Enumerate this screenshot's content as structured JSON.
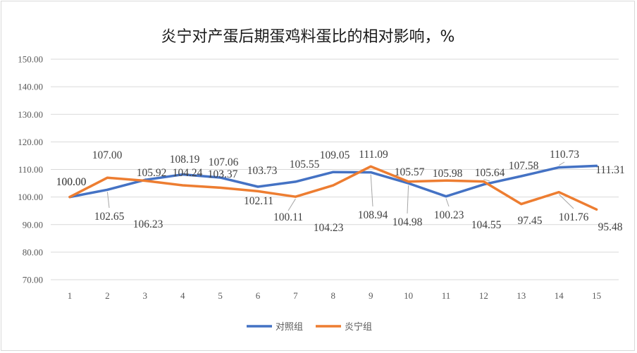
{
  "chart_data": {
    "type": "line",
    "title": "炎宁对产蛋后期蛋鸡料蛋比的相对影响，%",
    "xlabel": "",
    "ylabel": "",
    "categories": [
      "1",
      "2",
      "3",
      "4",
      "5",
      "6",
      "7",
      "8",
      "9",
      "10",
      "11",
      "12",
      "13",
      "14",
      "15"
    ],
    "ylim": [
      70,
      150
    ],
    "yticks": [
      "70.00",
      "80.00",
      "90.00",
      "100.00",
      "110.00",
      "120.00",
      "130.00",
      "140.00",
      "150.00"
    ],
    "grid": true,
    "legend_position": "bottom",
    "series": [
      {
        "name": "对照组",
        "color": "#4472c4",
        "values": [
          100.0,
          102.65,
          106.23,
          108.19,
          107.06,
          103.73,
          105.55,
          109.05,
          108.94,
          104.98,
          100.23,
          104.55,
          107.58,
          110.73,
          111.31
        ],
        "labels": [
          "100.00",
          "102.65",
          "106.23",
          "108.19",
          "107.06",
          "103.73",
          "105.55",
          "109.05",
          "108.94",
          "104.98",
          "100.23",
          "104.55",
          "107.58",
          "110.73",
          "111.31"
        ]
      },
      {
        "name": "炎宁组",
        "color": "#ed7d31",
        "values": [
          100.0,
          107.0,
          105.92,
          104.24,
          103.37,
          102.11,
          100.11,
          104.23,
          111.09,
          105.57,
          105.98,
          105.64,
          97.45,
          101.76,
          95.48
        ],
        "labels": [
          "100.00",
          "107.00",
          "105.92",
          "104.24",
          "103.37",
          "102.11",
          "100.11",
          "104.23",
          "111.09",
          "105.57",
          "105.98",
          "105.64",
          "97.45",
          "101.76",
          "95.48"
        ]
      }
    ]
  }
}
